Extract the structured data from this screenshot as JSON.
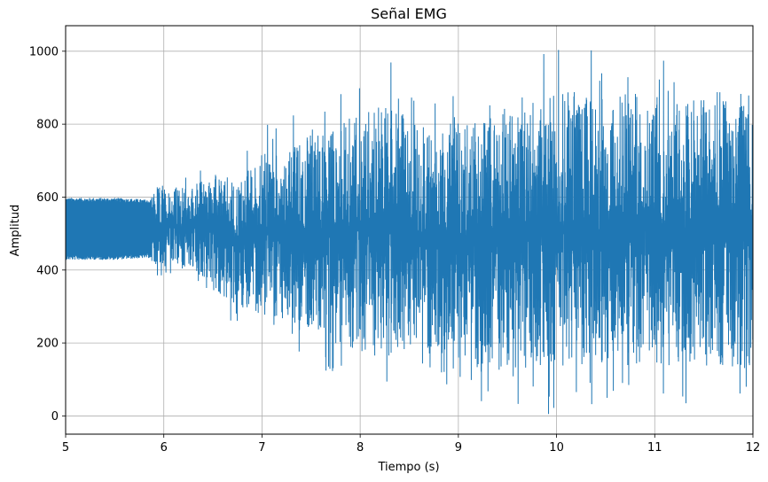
{
  "chart_data": {
    "type": "line",
    "title": "Señal EMG",
    "xlabel": "Tiempo (s)",
    "ylabel": "Amplitud",
    "xlim": [
      5,
      12
    ],
    "ylim": [
      -50,
      1070
    ],
    "x_ticks": [
      5,
      6,
      7,
      8,
      9,
      10,
      11,
      12
    ],
    "y_ticks": [
      0,
      200,
      400,
      600,
      800,
      1000
    ],
    "grid": true,
    "series": [
      {
        "color": "#1f77b4",
        "x": [
          5.0,
          5.25,
          5.5,
          5.75,
          5.87,
          5.9,
          6.0,
          6.25,
          6.5,
          6.75,
          7.0,
          7.25,
          7.5,
          7.75,
          8.0,
          8.25,
          8.5,
          8.75,
          9.0,
          9.25,
          9.5,
          9.75,
          10.0,
          10.25,
          10.5,
          10.75,
          11.0,
          11.25,
          11.5,
          11.75,
          12.0
        ],
        "envelope_max": [
          598,
          598,
          598,
          595,
          592,
          665,
          668,
          668,
          720,
          705,
          800,
          815,
          870,
          895,
          970,
          990,
          920,
          900,
          915,
          955,
          960,
          990,
          1020,
          1020,
          995,
          1020,
          1000,
          985,
          1000,
          1025,
          1025
        ],
        "envelope_min": [
          428,
          428,
          428,
          432,
          433,
          368,
          368,
          365,
          298,
          240,
          200,
          180,
          150,
          100,
          50,
          45,
          65,
          85,
          20,
          0,
          0,
          5,
          0,
          0,
          0,
          0,
          35,
          0,
          30,
          0,
          5
        ]
      }
    ]
  }
}
